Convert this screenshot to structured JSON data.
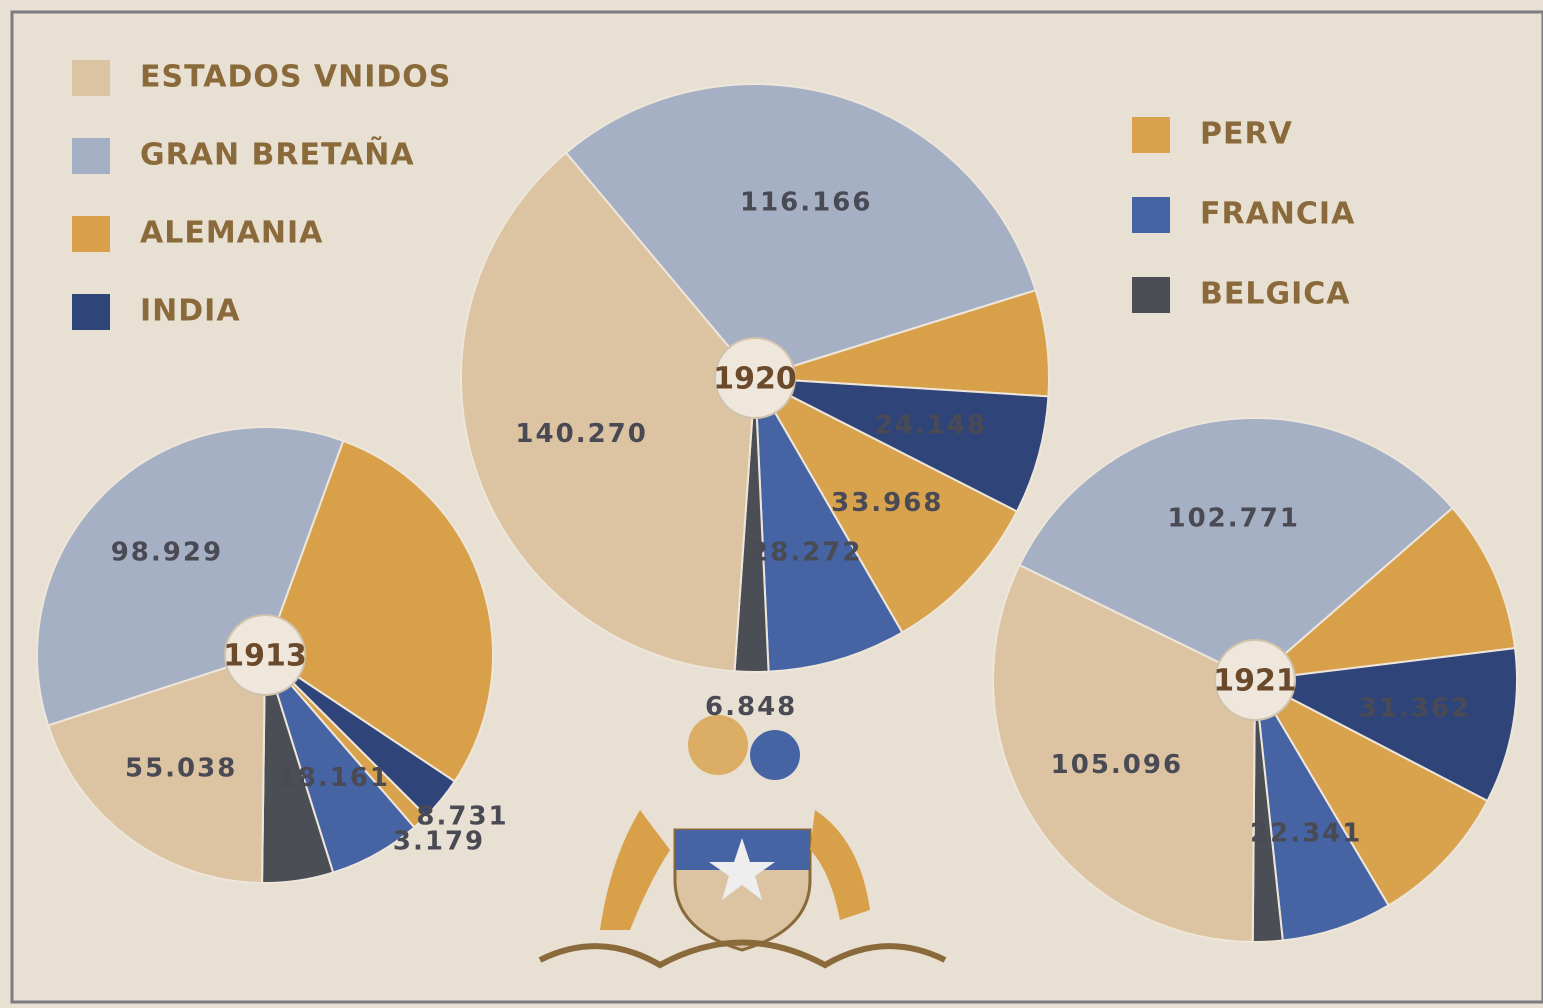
{
  "legend": {
    "series": [
      {
        "name": "ESTADOS VNIDOS",
        "color": "#dcc4a2"
      },
      {
        "name": "GRAN BRETAÑA",
        "color": "#a6b0c4"
      },
      {
        "name": "ALEMANIA",
        "color": "#d8a049"
      },
      {
        "name": "INDIA",
        "color": "#2f4478"
      },
      {
        "name": "PERV",
        "color": "#d9a24c"
      },
      {
        "name": "FRANCIA",
        "color": "#4664a3"
      },
      {
        "name": "BELGICA",
        "color": "#4b4e54"
      }
    ]
  },
  "chart_data": [
    {
      "type": "pie",
      "title": "1913",
      "categories": [
        "GRAN BRETAÑA",
        "ALEMANIA",
        "INDIA",
        "PERV",
        "FRANCIA",
        "BELGICA",
        "ESTADOS VNIDOS"
      ],
      "values": [
        98929,
        80000,
        8731,
        3179,
        18161,
        14000,
        55038
      ],
      "value_labels": [
        "98.929",
        null,
        "8.731",
        "3.179",
        "18.161",
        null,
        "55.038"
      ]
    },
    {
      "type": "pie",
      "title": "1920",
      "categories": [
        "GRAN BRETAÑA",
        "ALEMANIA",
        "INDIA",
        "PERV",
        "FRANCIA",
        "BELGICA",
        "ESTADOS VNIDOS"
      ],
      "values": [
        116166,
        21600,
        24148,
        33968,
        28272,
        6848,
        140270
      ],
      "value_labels": [
        "116.166",
        null,
        "24.148",
        "33.968",
        "28.272",
        "6.848",
        "140.270"
      ]
    },
    {
      "type": "pie",
      "title": "1921",
      "categories": [
        "GRAN BRETAÑA",
        "ALEMANIA",
        "INDIA",
        "PERV",
        "FRANCIA",
        "BELGICA",
        "ESTADOS VNIDOS"
      ],
      "values": [
        102771,
        31000,
        31362,
        29000,
        22341,
        6000,
        105096
      ],
      "value_labels": [
        "102.771",
        null,
        "31.362",
        null,
        "22.341",
        null,
        "105.096"
      ]
    }
  ]
}
